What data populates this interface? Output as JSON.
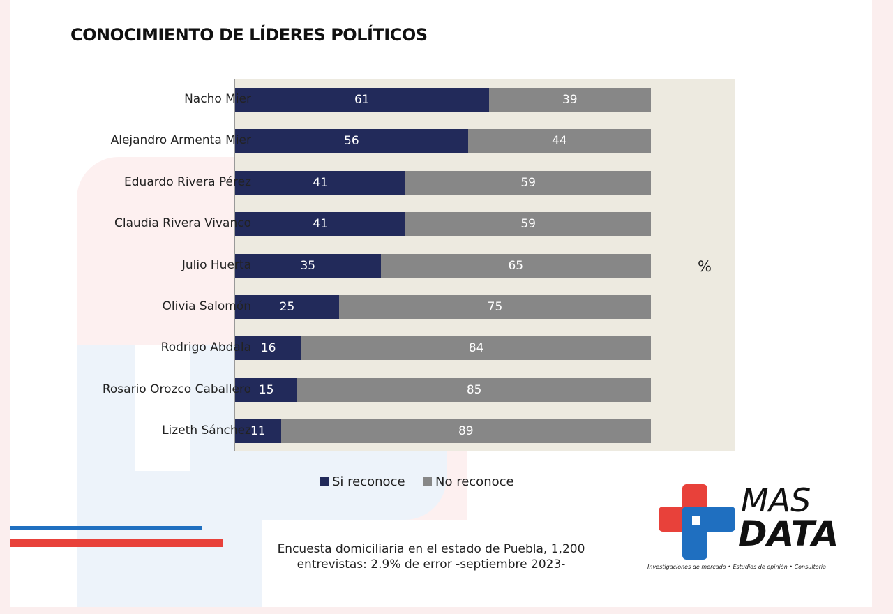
{
  "chart_data": {
    "type": "bar",
    "orientation": "horizontal",
    "stacked": true,
    "title": "CONOCIMIENTO DE LÍDERES POLÍTICOS",
    "unit_label": "%",
    "categories": [
      "Nacho Mier",
      "Alejandro Armenta Mier",
      "Eduardo Rivera Pérez",
      "Claudia Rivera Vivanco",
      "Julio Huerta",
      "Olivia Salomón",
      "Rodrigo Abdala",
      "Rosario Orozco Caballero",
      "Lizeth Sánchez"
    ],
    "series": [
      {
        "name": "Si reconoce",
        "color": "#222a5a",
        "values": [
          61,
          56,
          41,
          41,
          35,
          25,
          16,
          15,
          11
        ]
      },
      {
        "name": "No reconoce",
        "color": "#878787",
        "values": [
          39,
          44,
          59,
          59,
          65,
          75,
          84,
          85,
          89
        ]
      }
    ],
    "xlim": [
      0,
      100
    ],
    "legend": "bottom",
    "grid": false
  },
  "footer": {
    "note_line1": "Encuesta domiciliaria en el estado de Puebla, 1,200",
    "note_line2": "entrevistas: 2.9% de error -septiembre 2023-"
  },
  "logo": {
    "line1": "MAS",
    "line2": "DATA",
    "tagline": "Investigaciones de mercado • Estudios de opinión • Consultoría",
    "colors": {
      "red": "#e8413a",
      "blue": "#1f6fc0"
    }
  }
}
